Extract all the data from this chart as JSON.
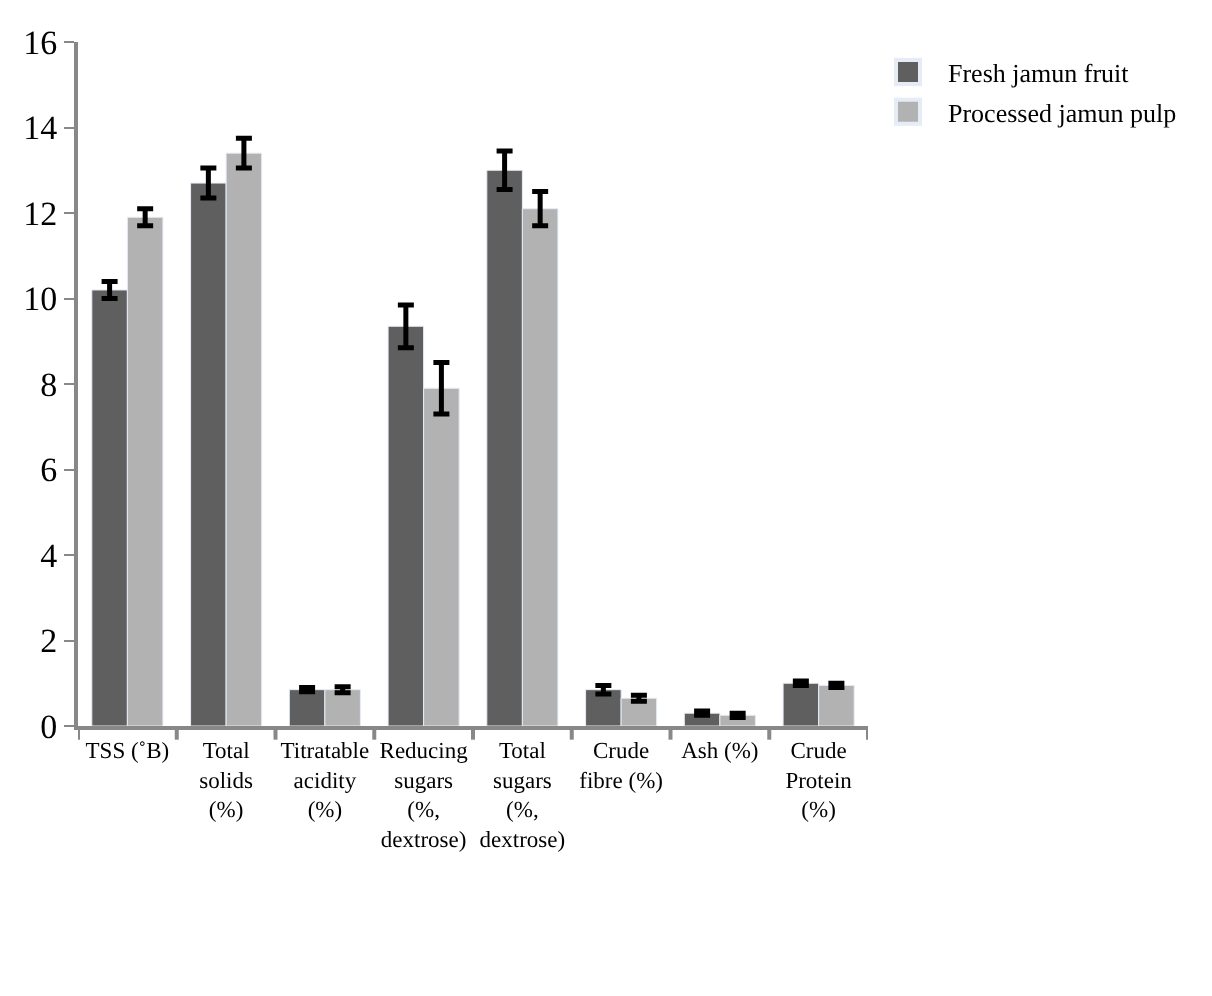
{
  "chart_data": {
    "type": "bar",
    "categories": [
      "TSS (˚B)",
      "Total solids (%)",
      "Titratable acidity (%)",
      "Reducing sugars (%, dextrose)",
      "Total sugars (%, dextrose)",
      "Crude fibre (%)",
      "Ash (%)",
      "Crude Protein (%)"
    ],
    "series": [
      {
        "name": "Fresh jamun fruit",
        "color": "#5f5f5f",
        "values": [
          10.2,
          12.7,
          0.85,
          9.35,
          13.0,
          0.85,
          0.3,
          1.0
        ],
        "errors": [
          0.2,
          0.35,
          0.05,
          0.5,
          0.45,
          0.1,
          0.05,
          0.05
        ]
      },
      {
        "name": "Processed jamun pulp",
        "color": "#b2b2b2",
        "values": [
          11.9,
          13.4,
          0.85,
          7.9,
          12.1,
          0.65,
          0.25,
          0.95
        ],
        "errors": [
          0.2,
          0.35,
          0.07,
          0.6,
          0.4,
          0.07,
          0.05,
          0.05
        ]
      }
    ],
    "ylim": [
      0,
      16
    ],
    "yticks": [
      0,
      2,
      4,
      6,
      8,
      10,
      12,
      14,
      16
    ],
    "legend": "top right"
  }
}
